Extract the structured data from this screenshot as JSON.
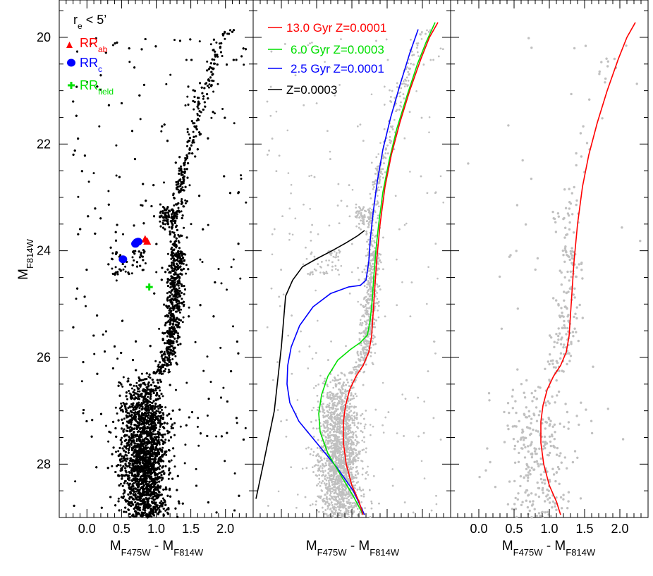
{
  "chart_data": [
    {
      "type": "scatter",
      "panel": "left",
      "xlabel": {
        "main": "M",
        "sub1": "F475W",
        "mid": " - M",
        "sub2": "F814W"
      },
      "ylabel": {
        "main": "M",
        "sub": "F814W"
      },
      "xlim": [
        -0.4,
        2.4
      ],
      "ylim": [
        29.0,
        19.3
      ],
      "y_inverted": true,
      "x_ticks": [
        "0.0",
        "0.5",
        "1.0",
        "1.5",
        "2.0"
      ],
      "y_ticks": [
        "20",
        "22",
        "24",
        "26",
        "28"
      ],
      "legend": {
        "title": {
          "main": "r",
          "sub": "e",
          "rest": " < 5’"
        },
        "items": [
          {
            "main": "RR",
            "sub": "ab",
            "marker": "triangle",
            "color": "#ff0000"
          },
          {
            "main": "RR",
            "sub": "c",
            "marker": "circle",
            "color": "#0000ff"
          },
          {
            "main": "RR",
            "sub": "field",
            "marker": "plus",
            "color": "#00e000"
          }
        ],
        "placement": "top-left"
      },
      "series": [
        {
          "kind": "field_stars",
          "color": "#000000",
          "count_approx": 9000
        },
        {
          "kind": "RRab",
          "color": "#ff0000",
          "marker": "triangle",
          "points": [
            [
              0.84,
              23.78
            ],
            [
              0.87,
              23.82
            ]
          ]
        },
        {
          "kind": "RRc",
          "color": "#0000ff",
          "marker": "circle",
          "points": [
            [
              0.7,
              23.87
            ],
            [
              0.72,
              23.84
            ],
            [
              0.74,
              23.83
            ],
            [
              0.52,
              24.16
            ]
          ]
        },
        {
          "kind": "RRfield",
          "color": "#00e000",
          "marker": "plus",
          "points": [
            [
              0.9,
              24.68
            ]
          ]
        }
      ]
    },
    {
      "type": "line",
      "panel": "middle",
      "xlabel": {
        "main": "M",
        "sub1": "F475W",
        "mid": " - M",
        "sub2": "F814W"
      },
      "xlim": [
        -0.4,
        2.4
      ],
      "ylim": [
        29.0,
        19.3
      ],
      "legend": {
        "items": [
          {
            "label": "13.0 Gyr Z=0.0001",
            "color": "#ff0000"
          },
          {
            "label": "6.0 Gyr Z=0.0003",
            "color": "#00e000"
          },
          {
            "label": "2.5 Gyr Z=0.0001",
            "color": "#0000ff"
          },
          {
            "label": "Z=0.0003",
            "color": "#000000"
          }
        ],
        "placement": "top-left"
      },
      "background_stars_color": "#c0c0c0",
      "series": [
        {
          "name": "13.0 Gyr Z=0.0001",
          "color": "#ff0000",
          "points": [
            [
              1.16,
              28.95
            ],
            [
              1.1,
              28.7
            ],
            [
              1.0,
              28.4
            ],
            [
              0.92,
              28.0
            ],
            [
              0.88,
              27.6
            ],
            [
              0.88,
              27.2
            ],
            [
              0.91,
              26.9
            ],
            [
              0.97,
              26.6
            ],
            [
              1.06,
              26.35
            ],
            [
              1.16,
              26.15
            ],
            [
              1.24,
              25.9
            ],
            [
              1.28,
              25.6
            ],
            [
              1.3,
              25.2
            ],
            [
              1.32,
              24.8
            ],
            [
              1.35,
              24.2
            ],
            [
              1.4,
              23.5
            ],
            [
              1.47,
              22.8
            ],
            [
              1.56,
              22.2
            ],
            [
              1.68,
              21.6
            ],
            [
              1.82,
              21.0
            ],
            [
              1.98,
              20.4
            ],
            [
              2.1,
              20.0
            ],
            [
              2.22,
              19.72
            ]
          ]
        },
        {
          "name": "6.0 Gyr Z=0.0003",
          "color": "#00e000",
          "points": [
            [
              1.16,
              28.95
            ],
            [
              1.02,
              28.6
            ],
            [
              0.84,
              28.2
            ],
            [
              0.66,
              27.8
            ],
            [
              0.55,
              27.4
            ],
            [
              0.53,
              27.05
            ],
            [
              0.57,
              26.7
            ],
            [
              0.66,
              26.35
            ],
            [
              0.8,
              26.05
            ],
            [
              0.98,
              25.85
            ],
            [
              1.12,
              25.72
            ],
            [
              1.22,
              25.58
            ],
            [
              1.26,
              25.3
            ],
            [
              1.29,
              24.9
            ],
            [
              1.31,
              24.5
            ],
            [
              1.34,
              24.0
            ],
            [
              1.38,
              23.5
            ],
            [
              1.44,
              22.9
            ],
            [
              1.53,
              22.3
            ],
            [
              1.64,
              21.7
            ],
            [
              1.78,
              21.1
            ],
            [
              1.93,
              20.5
            ],
            [
              2.05,
              20.1
            ],
            [
              2.18,
              19.72
            ]
          ]
        },
        {
          "name": "2.5 Gyr Z=0.0001",
          "color": "#0000ff",
          "points": [
            [
              1.18,
              28.95
            ],
            [
              1.02,
              28.5
            ],
            [
              0.78,
              28.05
            ],
            [
              0.5,
              27.6
            ],
            [
              0.25,
              27.2
            ],
            [
              0.12,
              26.85
            ],
            [
              0.08,
              26.5
            ],
            [
              0.09,
              26.15
            ],
            [
              0.14,
              25.8
            ],
            [
              0.26,
              25.4
            ],
            [
              0.45,
              25.05
            ],
            [
              0.7,
              24.8
            ],
            [
              0.95,
              24.68
            ],
            [
              1.12,
              24.65
            ],
            [
              1.2,
              24.55
            ],
            [
              1.24,
              24.2
            ],
            [
              1.26,
              23.8
            ],
            [
              1.3,
              23.3
            ],
            [
              1.36,
              22.7
            ],
            [
              1.44,
              22.1
            ],
            [
              1.55,
              21.5
            ],
            [
              1.68,
              20.9
            ],
            [
              1.82,
              20.3
            ],
            [
              1.94,
              19.85
            ]
          ]
        },
        {
          "name": "Z=0.0003",
          "color": "#000000",
          "points": [
            [
              -0.36,
              28.65
            ],
            [
              -0.24,
              27.9
            ],
            [
              -0.1,
              27.0
            ],
            [
              0.0,
              25.8
            ],
            [
              0.06,
              24.85
            ],
            [
              0.16,
              24.55
            ],
            [
              0.3,
              24.3
            ],
            [
              0.5,
              24.15
            ],
            [
              0.72,
              24.0
            ],
            [
              0.92,
              23.85
            ],
            [
              1.08,
              23.72
            ],
            [
              1.18,
              23.62
            ]
          ]
        }
      ]
    },
    {
      "type": "line",
      "panel": "right",
      "xlabel": {
        "main": "M",
        "sub1": "F475W",
        "mid": " - M",
        "sub2": "F814W"
      },
      "xlim": [
        -0.4,
        2.4
      ],
      "ylim": [
        29.0,
        19.3
      ],
      "x_ticks": [
        "0.0",
        "0.5",
        "1.0",
        "1.5",
        "2.0"
      ],
      "background_stars_color": "#c0c0c0",
      "series": [
        {
          "name": "13.0 Gyr Z=0.0001",
          "color": "#ff0000",
          "points": [
            [
              1.16,
              28.95
            ],
            [
              1.1,
              28.7
            ],
            [
              1.0,
              28.4
            ],
            [
              0.92,
              28.0
            ],
            [
              0.88,
              27.6
            ],
            [
              0.88,
              27.2
            ],
            [
              0.91,
              26.9
            ],
            [
              0.97,
              26.6
            ],
            [
              1.06,
              26.35
            ],
            [
              1.16,
              26.15
            ],
            [
              1.24,
              25.9
            ],
            [
              1.28,
              25.6
            ],
            [
              1.3,
              25.2
            ],
            [
              1.32,
              24.8
            ],
            [
              1.35,
              24.2
            ],
            [
              1.4,
              23.5
            ],
            [
              1.47,
              22.8
            ],
            [
              1.56,
              22.2
            ],
            [
              1.68,
              21.6
            ],
            [
              1.82,
              21.0
            ],
            [
              1.98,
              20.4
            ],
            [
              2.1,
              20.0
            ],
            [
              2.22,
              19.72
            ]
          ]
        }
      ]
    }
  ]
}
